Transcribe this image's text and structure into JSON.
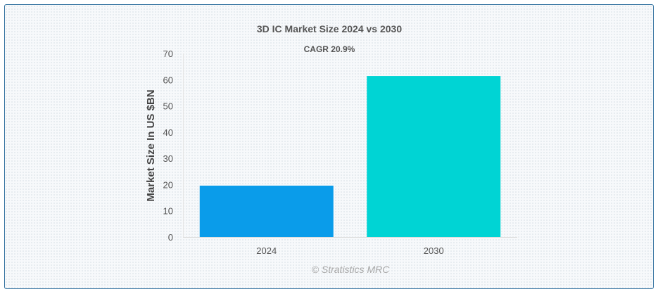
{
  "chart_data": {
    "type": "bar",
    "title": "3D IC Market Size 2024 vs 2030",
    "subtitle": "CAGR 20.9%",
    "xlabel": "",
    "ylabel": "Market Size In US $BN",
    "categories": [
      "2024",
      "2030"
    ],
    "values": [
      19.6,
      61.4
    ],
    "bar_colors": [
      "#0a9cea",
      "#00d4d4"
    ],
    "ylim": [
      0,
      70
    ],
    "yticks": [
      "0",
      "10",
      "20",
      "30",
      "40",
      "50",
      "60",
      "70"
    ],
    "grid": false,
    "legend": "none"
  },
  "credit": "© Stratistics MRC"
}
